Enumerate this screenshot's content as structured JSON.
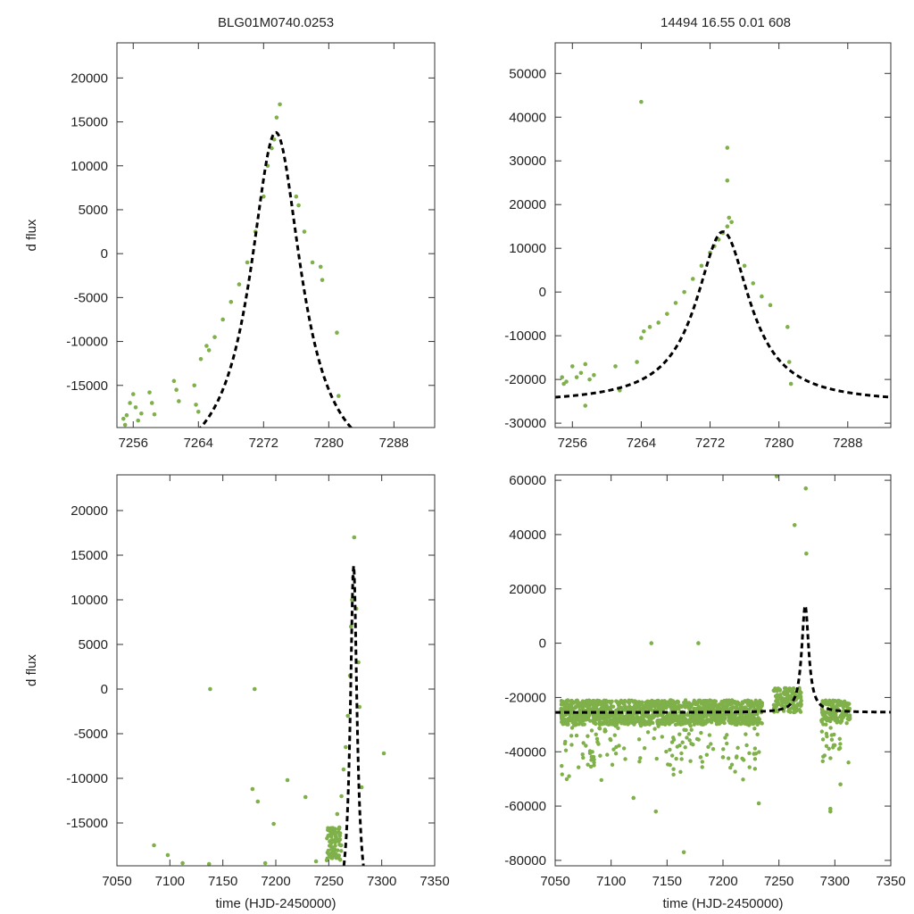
{
  "titles": {
    "left": "BLG01M0740.0253",
    "right": "14494  16.55  0.01  608"
  },
  "colors": {
    "points": "#7fb04a",
    "model": "#000000",
    "frame": "#333333"
  },
  "chart_data": [
    {
      "type": "scatter",
      "panel": "top-left",
      "xlabel": "",
      "ylabel": "d flux",
      "xlim": [
        7254,
        7293
      ],
      "ylim": [
        -19800,
        24000
      ],
      "xticks": [
        7256,
        7264,
        7272,
        7280,
        7288
      ],
      "yticks": [
        -15000,
        -10000,
        -5000,
        0,
        5000,
        10000,
        15000,
        20000
      ],
      "model": {
        "t0": 7273.5,
        "peak": 13800,
        "base": -25500,
        "width": 3.8
      },
      "series": [
        {
          "x": [
            7254.8,
            7255.0,
            7255.2,
            7255.6,
            7256.0,
            7256.3,
            7256.6,
            7257.0,
            7258.0,
            7258.3,
            7258.6,
            7261.0,
            7261.3,
            7261.6,
            7263.5,
            7263.7,
            7264.0,
            7264.3,
            7265.0,
            7265.3,
            7266.0,
            7267.0,
            7268.0,
            7269.0,
            7270.0,
            7271.0,
            7272.0,
            7272.5,
            7273.0,
            7273.3,
            7273.6,
            7274.0,
            7276.0,
            7276.3,
            7277.0,
            7278.0,
            7279.0,
            7279.2,
            7281.0,
            7281.2
          ],
          "y": [
            -18800,
            -19500,
            -18400,
            -17000,
            -16000,
            -17500,
            -19000,
            -18200,
            -15800,
            -17000,
            -18300,
            -14500,
            -15500,
            -16800,
            -15000,
            -17200,
            -18000,
            -12000,
            -10500,
            -11000,
            -9500,
            -7500,
            -5500,
            -3500,
            -1000,
            2500,
            6500,
            10000,
            12000,
            13000,
            15500,
            17000,
            6500,
            5500,
            2500,
            -1000,
            -1500,
            -3000,
            -9000,
            -16200
          ]
        }
      ]
    },
    {
      "type": "scatter",
      "panel": "top-right",
      "xlabel": "",
      "ylabel": "",
      "xlim": [
        7254,
        7293
      ],
      "ylim": [
        -31000,
        57000
      ],
      "xticks": [
        7256,
        7264,
        7272,
        7280,
        7288
      ],
      "yticks": [
        -30000,
        -20000,
        -10000,
        0,
        10000,
        20000,
        30000,
        40000,
        50000
      ],
      "model": {
        "t0": 7273.5,
        "peak": 13800,
        "base": -25500,
        "width": 3.8
      },
      "series": [
        {
          "x": [
            7254.8,
            7255.0,
            7255.3,
            7256.0,
            7256.5,
            7257.0,
            7257.5,
            7258.0,
            7258.5,
            7261.0,
            7261.5,
            7263.5,
            7264.0,
            7264.3,
            7265.0,
            7266.0,
            7267.0,
            7268.0,
            7269.0,
            7270.0,
            7271.0,
            7272.0,
            7272.5,
            7273.0,
            7273.5,
            7274.0,
            7274.2,
            7274.5,
            7276.0,
            7277.0,
            7278.0,
            7279.0,
            7281.0,
            7281.2,
            7281.4,
            7264.0,
            7274.0,
            7274.0,
            7257.5
          ],
          "y": [
            -19500,
            -21000,
            -20500,
            -17000,
            -19500,
            -18500,
            -16500,
            -20000,
            -19000,
            -17000,
            -22500,
            -16000,
            -10500,
            -9000,
            -8000,
            -7000,
            -5000,
            -2500,
            0,
            3000,
            6000,
            9000,
            10500,
            12000,
            13500,
            15000,
            17000,
            16000,
            6000,
            2000,
            -1000,
            -3000,
            -8000,
            -16000,
            -21000,
            43500,
            33000,
            25500,
            -26000
          ]
        }
      ]
    },
    {
      "type": "scatter",
      "panel": "bottom-left",
      "xlabel": "time (HJD-2450000)",
      "ylabel": "d flux",
      "xlim": [
        7050,
        7350
      ],
      "ylim": [
        -19800,
        24000
      ],
      "xticks": [
        7050,
        7100,
        7150,
        7200,
        7250,
        7300,
        7350
      ],
      "yticks": [
        -15000,
        -10000,
        -5000,
        0,
        5000,
        10000,
        15000,
        20000
      ],
      "model": {
        "t0": 7273.5,
        "peak": 13800,
        "base": -25500,
        "width": 3.8
      },
      "series": [
        {
          "x": [
            7085,
            7098,
            7112,
            7137,
            7138,
            7178,
            7180,
            7183,
            7190,
            7198,
            7211,
            7228,
            7238,
            7250,
            7252,
            7254,
            7256,
            7258,
            7260,
            7262,
            7264,
            7266,
            7268,
            7270,
            7271,
            7272,
            7273,
            7274,
            7276,
            7278,
            7279,
            7281,
            7302
          ],
          "y": [
            -17500,
            -18600,
            -19500,
            -19600,
            0,
            -11200,
            0,
            -12600,
            -19500,
            -15100,
            -10200,
            -12100,
            -19300,
            -18500,
            -17000,
            -18000,
            -16000,
            -14000,
            -15500,
            -12000,
            -9000,
            -6500,
            -3000,
            1500,
            7000,
            10000,
            12500,
            17000,
            9000,
            3000,
            -2000,
            -11000,
            -7200
          ]
        }
      ]
    },
    {
      "type": "scatter",
      "panel": "bottom-right",
      "xlabel": "time (HJD-2450000)",
      "ylabel": "",
      "xlim": [
        7050,
        7350
      ],
      "ylim": [
        -82000,
        62000
      ],
      "xticks": [
        7050,
        7100,
        7150,
        7200,
        7250,
        7300,
        7350
      ],
      "yticks": [
        -80000,
        -60000,
        -40000,
        -20000,
        0,
        20000,
        40000,
        60000
      ],
      "model": {
        "t0": 7273.5,
        "peak": 13800,
        "base": -25500,
        "width": 3.8
      },
      "series": [
        {
          "x": [
            7136,
            7178,
            7248,
            7264,
            7274,
            7274.5,
            7296,
            7140,
            7165,
            7120,
            7180,
            7296,
            7305,
            7232,
            7200
          ],
          "y": [
            0,
            0,
            61500,
            43500,
            57000,
            33000,
            -62000,
            -62000,
            -77000,
            -57000,
            -42000,
            -61000,
            -52000,
            -59000,
            -42000
          ]
        }
      ]
    }
  ]
}
